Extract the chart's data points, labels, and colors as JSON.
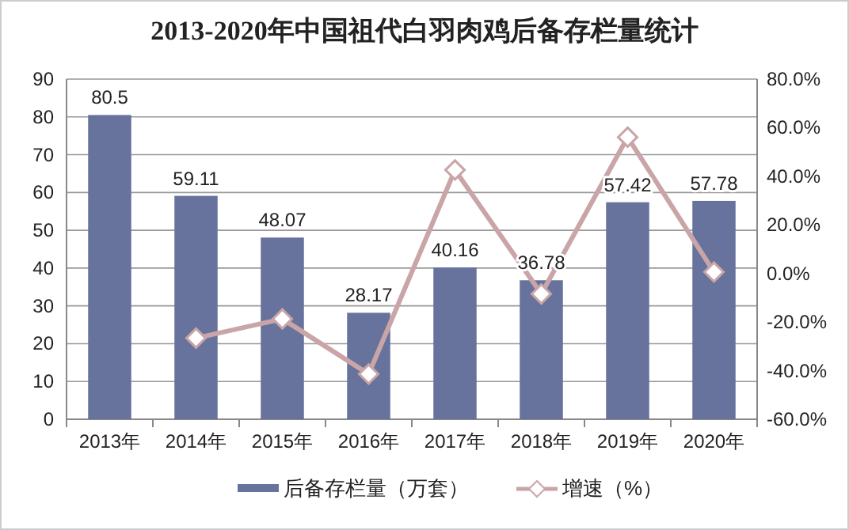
{
  "chart_data": {
    "type": "bar",
    "title": "2013-2020年中国祖代白羽肉鸡后备存栏量统计",
    "categories": [
      "2013年",
      "2014年",
      "2015年",
      "2016年",
      "2017年",
      "2018年",
      "2019年",
      "2020年"
    ],
    "series": [
      {
        "name": "后备存栏量（万套）",
        "color": "#67739c",
        "values": [
          80.5,
          59.11,
          48.07,
          28.17,
          40.16,
          36.78,
          57.42,
          57.78
        ],
        "value_labels": [
          "80.5",
          "59.11",
          "48.07",
          "28.17",
          "40.16",
          "36.78",
          "57.42",
          "57.78"
        ]
      },
      {
        "name": "增速（%）",
        "type": "line",
        "axis": "y2",
        "color": "#c9a5a8",
        "marker": "diamond",
        "values": [
          null,
          -26.6,
          -18.7,
          -41.4,
          42.6,
          -8.4,
          56.1,
          0.6
        ]
      }
    ],
    "ylim": [
      0,
      90
    ],
    "yticks": [
      0,
      10,
      20,
      30,
      40,
      50,
      60,
      70,
      80,
      90
    ],
    "y2lim": [
      -60,
      80
    ],
    "y2ticks": [
      {
        "value": -60,
        "label": "-60.0%"
      },
      {
        "value": -40,
        "label": "-40.0%"
      },
      {
        "value": -20,
        "label": "-20.0%"
      },
      {
        "value": 0,
        "label": "0.0%"
      },
      {
        "value": 20,
        "label": "20.0%"
      },
      {
        "value": 40,
        "label": "40.0%"
      },
      {
        "value": 60,
        "label": "60.0%"
      },
      {
        "value": 80,
        "label": "80.0%"
      }
    ],
    "grid": "y",
    "legend": "bottom"
  }
}
